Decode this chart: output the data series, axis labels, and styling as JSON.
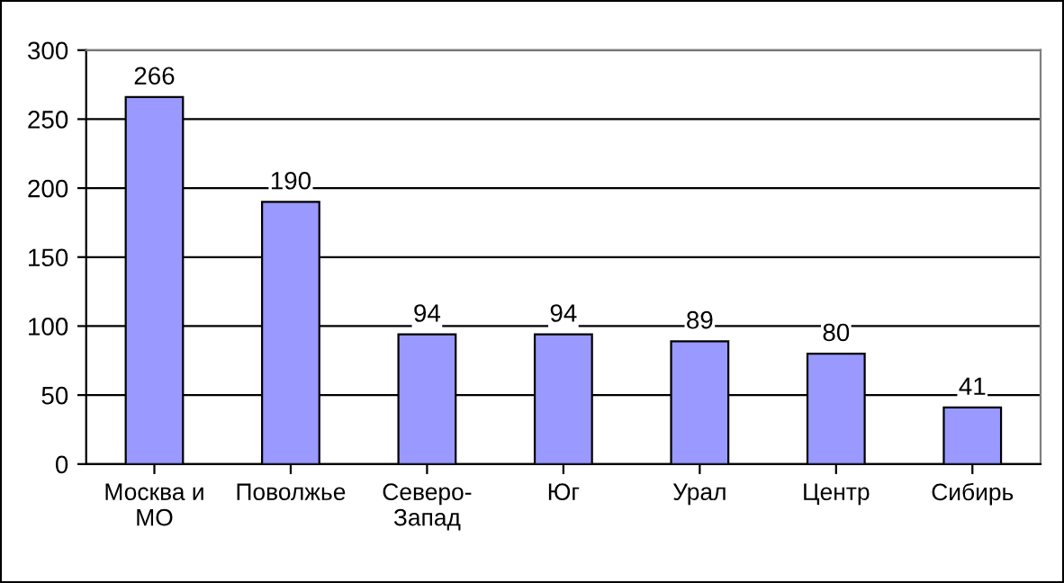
{
  "chart_data": {
    "type": "bar",
    "categories": [
      "Москва и\nМО",
      "Поволжье",
      "Северо-\nЗапад",
      "Юг",
      "Урал",
      "Центр",
      "Сибирь"
    ],
    "values": [
      266,
      190,
      94,
      94,
      89,
      80,
      41
    ],
    "color": "#9999ff",
    "ylim": [
      0,
      300
    ],
    "yticks": [
      0,
      50,
      100,
      150,
      200,
      250,
      300
    ],
    "grid": "y",
    "data_labels": true
  }
}
